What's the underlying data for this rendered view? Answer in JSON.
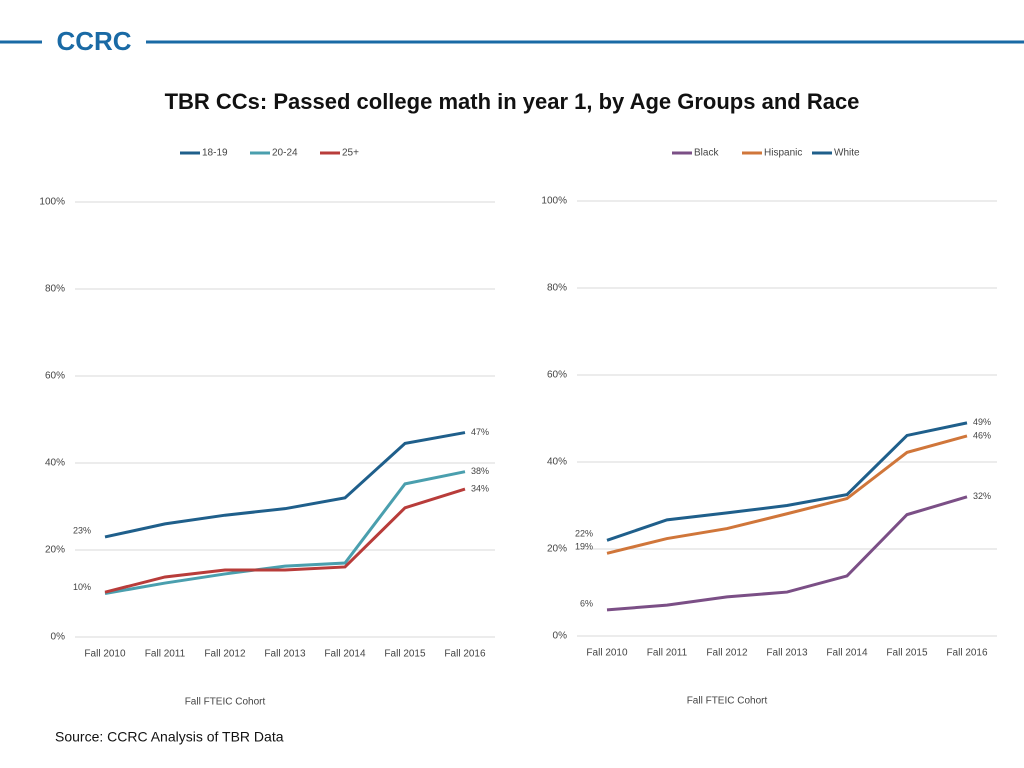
{
  "header": {
    "logo": "CCRC"
  },
  "title": "TBR CCs: Passed college math in year 1, by Age Groups and Race",
  "source": "Source: CCRC Analysis of TBR Data",
  "chart_data": [
    {
      "type": "line",
      "xlabel": "Fall FTEIC Cohort",
      "legend": "top",
      "grid": true,
      "categories": [
        "Fall 2010",
        "Fall 2011",
        "Fall 2012",
        "Fall 2013",
        "Fall 2014",
        "Fall 2015",
        "Fall 2016"
      ],
      "ylim": [
        0,
        100
      ],
      "yticks": [
        {
          "value": 0,
          "label": "0%"
        },
        {
          "value": 20,
          "label": "20%"
        },
        {
          "value": 40,
          "label": "40%"
        },
        {
          "value": 60,
          "label": "60%"
        },
        {
          "value": 80,
          "label": "80%"
        },
        {
          "value": 100,
          "label": "100%"
        }
      ],
      "series": [
        {
          "name": "18-19",
          "color": "#1f5f8b",
          "values": [
            23,
            26,
            28,
            29.5,
            32,
            44.5,
            47
          ],
          "value_labels": [
            "23%",
            null,
            null,
            null,
            null,
            null,
            "47%"
          ]
        },
        {
          "name": "20-24",
          "color": "#4a9fae",
          "values": [
            10,
            12.4,
            14.5,
            16.3,
            17,
            35.2,
            38
          ],
          "value_labels": [
            "10%",
            null,
            null,
            null,
            null,
            null,
            "38%"
          ]
        },
        {
          "name": "25+",
          "color": "#b83c3a",
          "values": [
            10.3,
            13.8,
            15.4,
            15.4,
            16.1,
            29.7,
            34
          ],
          "value_labels": [
            null,
            null,
            null,
            null,
            null,
            null,
            "34%"
          ]
        }
      ]
    },
    {
      "type": "line",
      "xlabel": "Fall FTEIC Cohort",
      "legend": "top",
      "grid": true,
      "categories": [
        "Fall 2010",
        "Fall 2011",
        "Fall 2012",
        "Fall 2013",
        "Fall 2014",
        "Fall 2015",
        "Fall 2016"
      ],
      "ylim": [
        0,
        100
      ],
      "yticks": [
        {
          "value": 0,
          "label": "0%"
        },
        {
          "value": 20,
          "label": "20%"
        },
        {
          "value": 40,
          "label": "40%"
        },
        {
          "value": 60,
          "label": "60%"
        },
        {
          "value": 80,
          "label": "80%"
        },
        {
          "value": 100,
          "label": "100%"
        }
      ],
      "series": [
        {
          "name": "Black",
          "color": "#7b4f86",
          "values": [
            6,
            7.1,
            9,
            10.1,
            13.8,
            27.9,
            32
          ],
          "value_labels": [
            "6%",
            null,
            null,
            null,
            null,
            null,
            "32%"
          ]
        },
        {
          "name": "Hispanic",
          "color": "#d0763a",
          "values": [
            19,
            22.4,
            24.7,
            28.1,
            31.6,
            42.2,
            46
          ],
          "value_labels": [
            "19%",
            null,
            null,
            null,
            null,
            null,
            "46%"
          ]
        },
        {
          "name": "White",
          "color": "#1f5f8b",
          "values": [
            22,
            26.7,
            28.3,
            30,
            32.5,
            46.1,
            49
          ],
          "value_labels": [
            "22%",
            null,
            null,
            null,
            null,
            null,
            "49%"
          ]
        }
      ]
    }
  ]
}
